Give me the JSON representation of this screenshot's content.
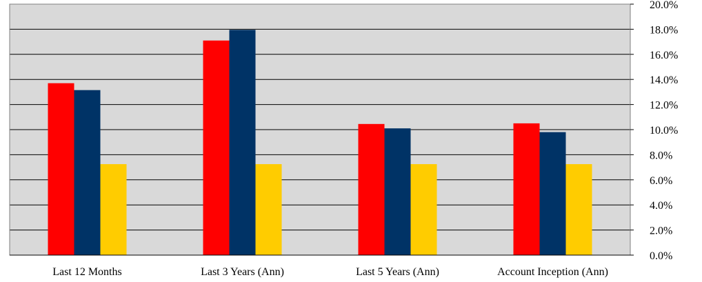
{
  "chart_data": {
    "type": "bar",
    "categories": [
      "Last 12 Months",
      "Last 3 Years (Ann)",
      "Last 5 Years (Ann)",
      "Account Inception (Ann)"
    ],
    "series": [
      {
        "values": [
          13.7,
          17.1,
          10.45,
          10.5
        ],
        "color": "#ff0000"
      },
      {
        "values": [
          13.15,
          17.95,
          10.1,
          9.8
        ],
        "color": "#003366"
      },
      {
        "values": [
          7.25,
          7.25,
          7.25,
          7.25
        ],
        "color": "#ffcc00"
      }
    ],
    "ylim": [
      0,
      20
    ],
    "yticks": [
      "0.0%",
      "2.0%",
      "4.0%",
      "6.0%",
      "8.0%",
      "10.0%",
      "12.0%",
      "14.0%",
      "16.0%",
      "18.0%",
      "20.0%"
    ],
    "ytick_values": [
      0,
      2,
      4,
      6,
      8,
      10,
      12,
      14,
      16,
      18,
      20
    ],
    "y_axis_side": "right",
    "grid": true,
    "plot_background": "#d9d9d9",
    "title": "",
    "xlabel": "",
    "ylabel": ""
  }
}
